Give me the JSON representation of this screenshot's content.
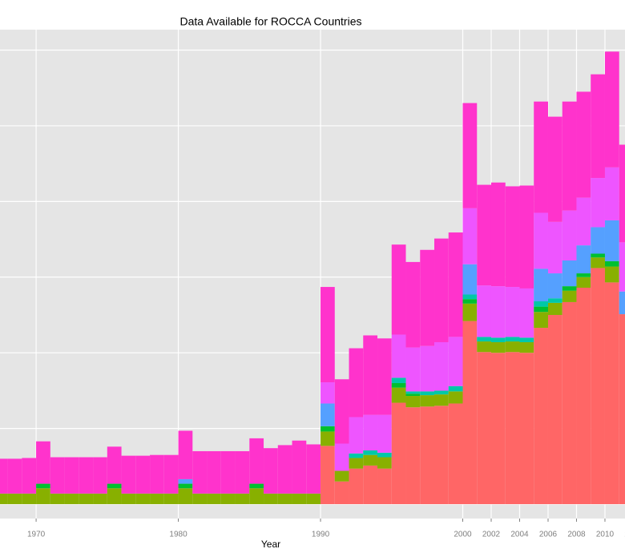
{
  "chart_data": {
    "type": "stacked_bar",
    "title": "Data Available for ROCCA Countries",
    "x_label": "Year",
    "x": [
      1967,
      1968,
      1969,
      1970,
      1971,
      1972,
      1973,
      1974,
      1975,
      1976,
      1977,
      1978,
      1979,
      1980,
      1981,
      1982,
      1983,
      1984,
      1985,
      1986,
      1987,
      1988,
      1989,
      1990,
      1991,
      1992,
      1993,
      1994,
      1995,
      1996,
      1997,
      1998,
      1999,
      2000,
      2001,
      2002,
      2003,
      2004,
      2005,
      2006,
      2007,
      2008,
      2009,
      2010,
      2011
    ],
    "series": [
      {
        "color": "#FF6666",
        "values": [
          0,
          0,
          0,
          0,
          0,
          0,
          0,
          0,
          0,
          0,
          0,
          0,
          0,
          0,
          0,
          0,
          0,
          0,
          0,
          0,
          0,
          0,
          0,
          77,
          30,
          47,
          51,
          47,
          134,
          128,
          129,
          130,
          133,
          242,
          201,
          200,
          201,
          200,
          233,
          250,
          267,
          286,
          312,
          293,
          251
        ]
      },
      {
        "color": "#88B000",
        "values": [
          14,
          14,
          14,
          21,
          14,
          14,
          14,
          14,
          21,
          14,
          14,
          14,
          14,
          21,
          14,
          14,
          14,
          14,
          21,
          14,
          14,
          14,
          14,
          19,
          14,
          14,
          14,
          15,
          20,
          15,
          15,
          15,
          16,
          23,
          14,
          14,
          14,
          14,
          21,
          16,
          15,
          14,
          14,
          21,
          0
        ]
      },
      {
        "color": "#00C030",
        "values": [
          0,
          0,
          0,
          6,
          0,
          0,
          0,
          0,
          6,
          0,
          0,
          0,
          0,
          6,
          0,
          0,
          0,
          0,
          6,
          0,
          0,
          0,
          0,
          7,
          0,
          0,
          0,
          0,
          6,
          3,
          0,
          0,
          0,
          6,
          0,
          0,
          0,
          0,
          7,
          0,
          6,
          5,
          5,
          7,
          0
        ]
      },
      {
        "color": "#00C8A8",
        "values": [
          0,
          0,
          0,
          0,
          0,
          0,
          0,
          0,
          0,
          0,
          0,
          0,
          0,
          0,
          0,
          0,
          0,
          0,
          0,
          0,
          0,
          0,
          0,
          0,
          0,
          6,
          6,
          6,
          7,
          3,
          5,
          5,
          7,
          6,
          6,
          6,
          6,
          6,
          7,
          6,
          0,
          0,
          0,
          0,
          0
        ]
      },
      {
        "color": "#55A0FF",
        "values": [
          0,
          0,
          0,
          0,
          0,
          0,
          0,
          0,
          0,
          0,
          0,
          0,
          0,
          6,
          0,
          0,
          0,
          0,
          0,
          0,
          0,
          0,
          0,
          30,
          0,
          0,
          0,
          0,
          0,
          0,
          0,
          0,
          0,
          40,
          0,
          0,
          0,
          0,
          43,
          33,
          34,
          37,
          35,
          54,
          30
        ]
      },
      {
        "color": "#EE55FF",
        "values": [
          0,
          0,
          0,
          0,
          0,
          0,
          0,
          0,
          0,
          0,
          0,
          0,
          0,
          0,
          0,
          0,
          0,
          0,
          0,
          0,
          0,
          0,
          0,
          28,
          36,
          48,
          47,
          50,
          57,
          58,
          60,
          64,
          65,
          74,
          68,
          68,
          66,
          65,
          74,
          68,
          66,
          63,
          65,
          70,
          65
        ]
      },
      {
        "color": "#FF33CC",
        "values": [
          46,
          46,
          47,
          56,
          48,
          48,
          48,
          48,
          49,
          50,
          50,
          51,
          51,
          64,
          56,
          56,
          56,
          56,
          60,
          60,
          64,
          70,
          65,
          126,
          85,
          91,
          105,
          101,
          119,
          113,
          127,
          137,
          138,
          139,
          133,
          137,
          133,
          136,
          147,
          139,
          144,
          140,
          137,
          153,
          129
        ]
      }
    ],
    "xlim": [
      1967.46,
      2011.41
    ],
    "xticks": [
      1970,
      1980,
      1990,
      2000,
      2002,
      2004,
      2006,
      2008,
      2010,
      2012
    ],
    "ylim": [
      -19,
      627
    ],
    "yticks": [
      0,
      100,
      200,
      300,
      400,
      500,
      600
    ],
    "grid": true
  }
}
